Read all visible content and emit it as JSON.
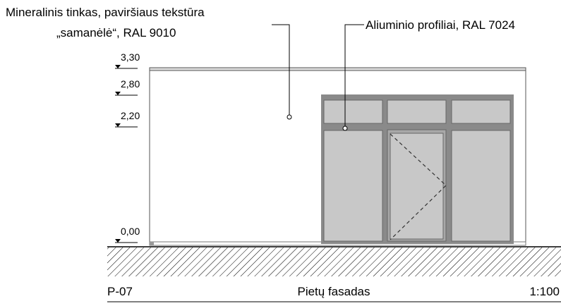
{
  "annotations": [
    {
      "lines": [
        "Mineralinis tinkas, paviršiaus tekstūra",
        "„samanėlė“, RAL 9010"
      ]
    },
    {
      "lines": [
        "Aliuminio profiliai, RAL 7024"
      ]
    }
  ],
  "levels": [
    "3,30",
    "2,80",
    "2,20",
    "0,00"
  ],
  "footer": {
    "code": "P-07",
    "title": "Pietų fasadas",
    "scale": "1:100"
  }
}
